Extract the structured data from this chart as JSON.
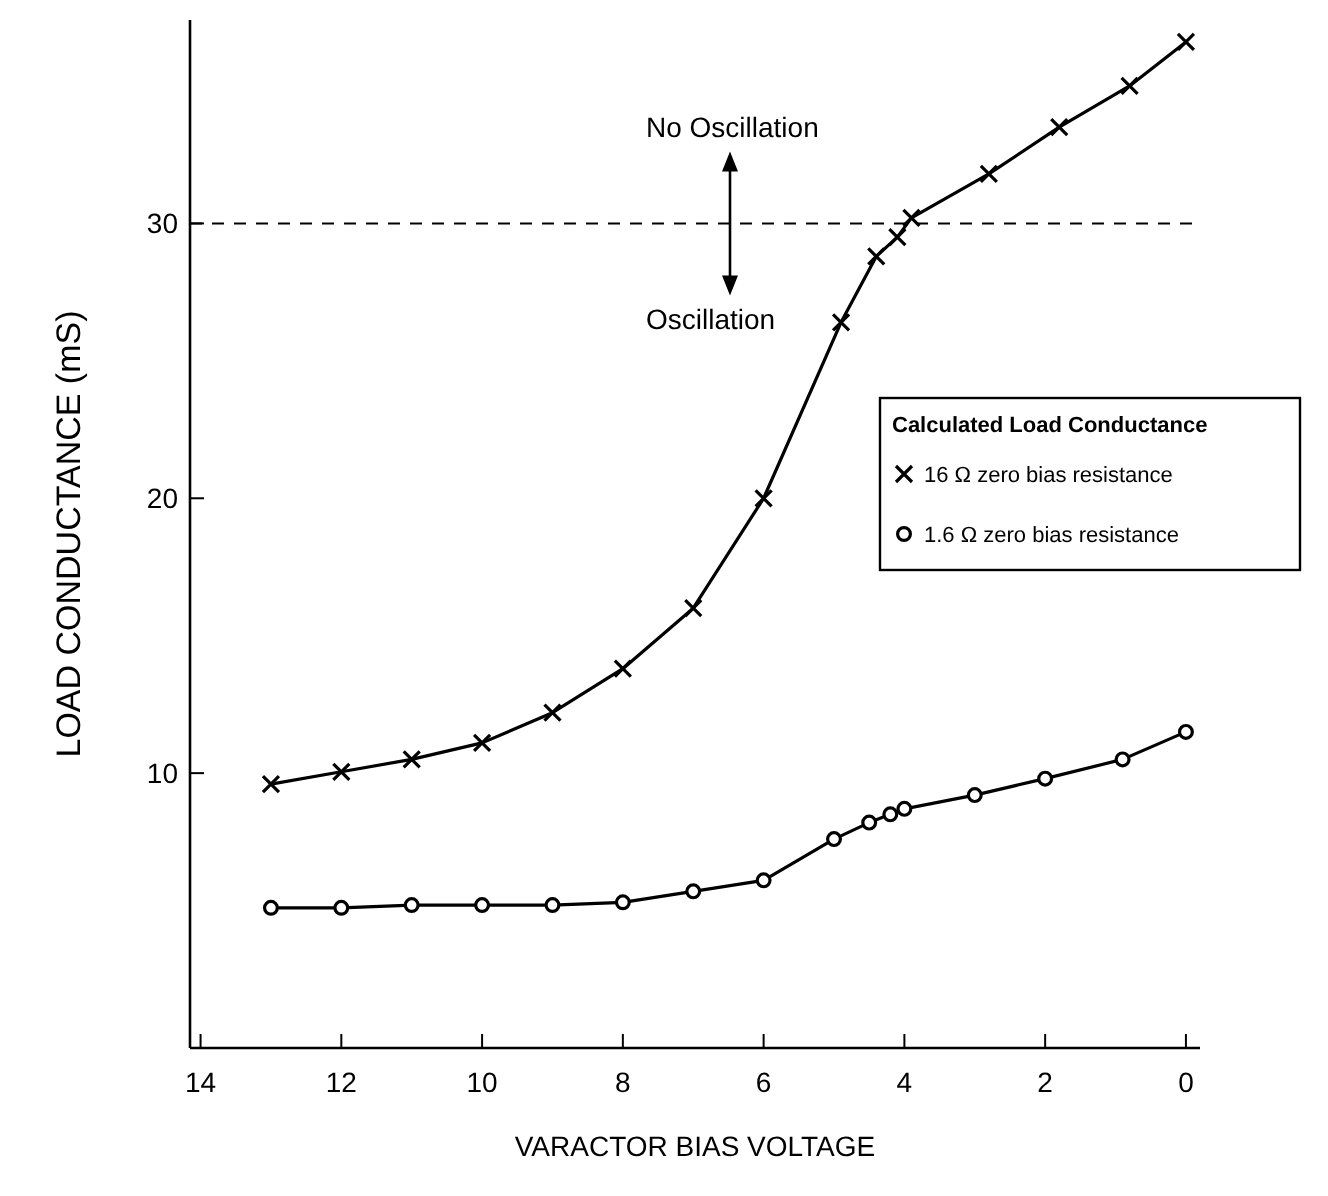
{
  "chart_data": {
    "type": "line",
    "xlabel": "VARACTOR BIAS VOLTAGE",
    "ylabel": "LOAD CONDUCTANCE  (mS)",
    "legend_title": "Calculated Load Conductance",
    "legend": "right",
    "grid": false,
    "line_style": "solid",
    "xlim": [
      14.15,
      -0.2
    ],
    "xticks": [
      14,
      12,
      10,
      8,
      6,
      4,
      2,
      0
    ],
    "ylim": [
      0,
      37.4
    ],
    "yticks": [
      10,
      20,
      30
    ],
    "series": [
      {
        "name": "16 Ω zero bias resistance",
        "color": "#000000",
        "marker": "cross",
        "x": [
          13,
          12,
          11,
          10,
          9,
          8,
          7,
          6,
          4.9,
          4.4,
          4.1,
          3.9,
          2.8,
          1.8,
          0.8,
          0
        ],
        "values": [
          9.6,
          10.05,
          10.5,
          11.1,
          12.2,
          13.8,
          16.0,
          20.0,
          26.4,
          28.8,
          29.5,
          30.2,
          31.8,
          33.5,
          35.0,
          36.6
        ]
      },
      {
        "name": "1.6 Ω zero bias resistance",
        "color": "#000000",
        "marker": "circle",
        "x": [
          13,
          12,
          11,
          10,
          9,
          8,
          7,
          6,
          5,
          4.5,
          4.2,
          4,
          3,
          2,
          0.9,
          0
        ],
        "values": [
          5.1,
          5.1,
          5.2,
          5.2,
          5.2,
          5.3,
          5.7,
          6.1,
          7.6,
          8.2,
          8.5,
          8.7,
          9.2,
          9.8,
          10.5,
          11.5
        ]
      }
    ],
    "ref_lines": [
      {
        "axis": "y",
        "value": 30,
        "line_style": "dashed"
      }
    ],
    "annotations": [
      "No Oscillation",
      "Oscillation"
    ]
  }
}
